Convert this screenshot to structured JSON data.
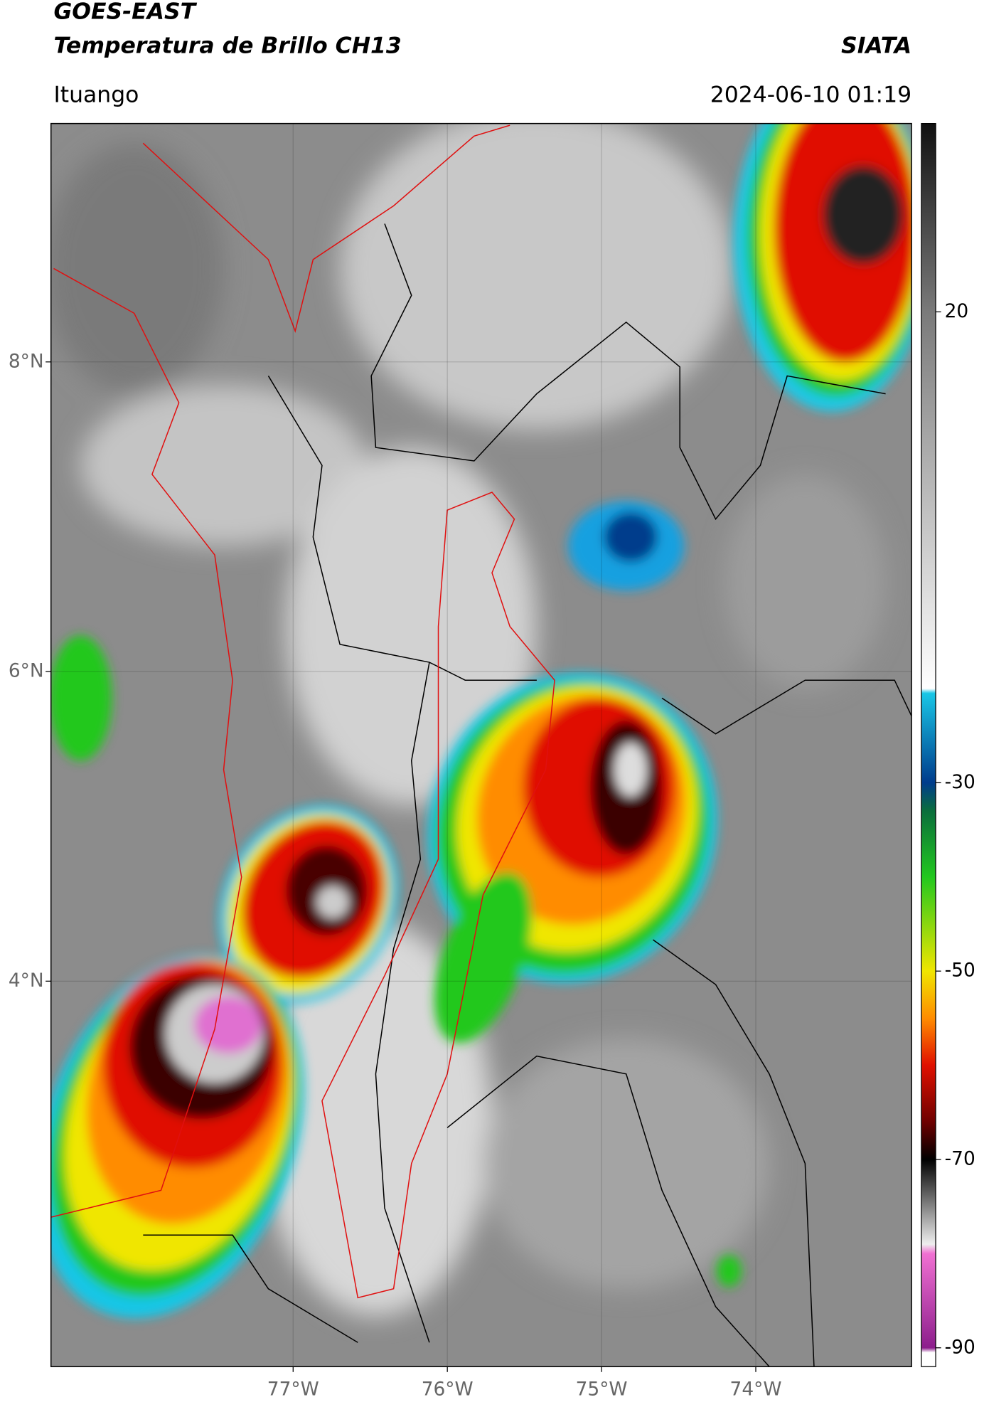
{
  "header": {
    "satellite": "GOES-EAST",
    "product": "Temperatura de Brillo CH13",
    "organization": "SIATA",
    "location": "Ituango",
    "datetime": "2024-06-10 01:19"
  },
  "map": {
    "xlim": [
      -78.57,
      -72.99
    ],
    "ylim": [
      1.51,
      9.54
    ],
    "xticks": [
      {
        "value": -77,
        "label": "77°W"
      },
      {
        "value": -76,
        "label": "76°W"
      },
      {
        "value": -75,
        "label": "75°W"
      },
      {
        "value": -74,
        "label": "74°W"
      }
    ],
    "yticks": [
      {
        "value": 8,
        "label": "8°N"
      },
      {
        "value": 6,
        "label": "6°N"
      },
      {
        "value": 4,
        "label": "4°N"
      }
    ],
    "grid": true
  },
  "colorbar": {
    "lim": [
      -92,
      40
    ],
    "ticks": [
      20,
      -30,
      -50,
      -70,
      -90
    ],
    "stops": [
      {
        "value": 40,
        "color": "#111111"
      },
      {
        "value": 20,
        "color": "#7a7a7a"
      },
      {
        "value": -20,
        "color": "#ffffff"
      },
      {
        "value": -20.5,
        "color": "#19c6e6"
      },
      {
        "value": -30,
        "color": "#003c8c"
      },
      {
        "value": -33,
        "color": "#0a6e3c"
      },
      {
        "value": -40,
        "color": "#22c81e"
      },
      {
        "value": -50,
        "color": "#f0e600"
      },
      {
        "value": -55,
        "color": "#ff8c00"
      },
      {
        "value": -60,
        "color": "#e01000"
      },
      {
        "value": -66,
        "color": "#6e0000"
      },
      {
        "value": -70,
        "color": "#000000"
      },
      {
        "value": -79,
        "color": "#eeeeee"
      },
      {
        "value": -80,
        "color": "#f070d2"
      },
      {
        "value": -90,
        "color": "#8c1e8c"
      },
      {
        "value": -90.5,
        "color": "#ffffff"
      }
    ]
  }
}
